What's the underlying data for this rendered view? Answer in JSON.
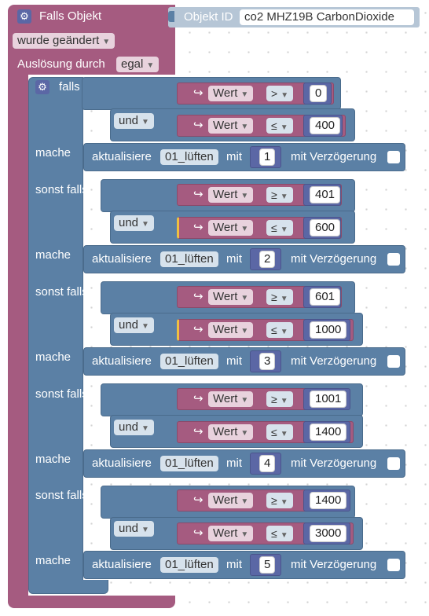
{
  "event_block": {
    "title": "Falls Objekt",
    "objekt_id_label": "Objekt ID",
    "objekt_id_value": "co2 MHZ19B  CarbonDioxide",
    "trigger": "wurde geändert",
    "ausloesung_label": "Auslösung durch",
    "ausloesung_value": "egal"
  },
  "if_block": {
    "falls": "falls",
    "mache": "mache",
    "sonst_falls": "sonst falls"
  },
  "branches": [
    {
      "c1": {
        "var": "Wert",
        "op": ">",
        "val": "0"
      },
      "joiner": "und",
      "c2": {
        "var": "Wert",
        "op": "≤",
        "val": "400"
      },
      "action": {
        "verb": "aktualisiere",
        "target": "01_lüften",
        "mit": "mit",
        "num": "1",
        "delay": "mit Verzögerung"
      }
    },
    {
      "c1": {
        "var": "Wert",
        "op": "≥",
        "val": "401"
      },
      "joiner": "und",
      "c2": {
        "var": "Wert",
        "op": "≤",
        "val": "600"
      },
      "action": {
        "verb": "aktualisiere",
        "target": "01_lüften",
        "mit": "mit",
        "num": "2",
        "delay": "mit Verzögerung"
      }
    },
    {
      "c1": {
        "var": "Wert",
        "op": "≥",
        "val": "601"
      },
      "joiner": "und",
      "c2": {
        "var": "Wert",
        "op": "≤",
        "val": "1000"
      },
      "action": {
        "verb": "aktualisiere",
        "target": "01_lüften",
        "mit": "mit",
        "num": "3",
        "delay": "mit Verzögerung"
      }
    },
    {
      "c1": {
        "var": "Wert",
        "op": "≥",
        "val": "1001"
      },
      "joiner": "und",
      "c2": {
        "var": "Wert",
        "op": "≤",
        "val": "1400"
      },
      "action": {
        "verb": "aktualisiere",
        "target": "01_lüften",
        "mit": "mit",
        "num": "4",
        "delay": "mit Verzögerung"
      }
    },
    {
      "c1": {
        "var": "Wert",
        "op": "≥",
        "val": "1400"
      },
      "joiner": "und",
      "c2": {
        "var": "Wert",
        "op": "≤",
        "val": "3000"
      },
      "action": {
        "verb": "aktualisiere",
        "target": "01_lüften",
        "mit": "mit",
        "num": "5",
        "delay": "mit Verzögerung"
      }
    }
  ],
  "icons": {
    "gear": "gear-icon",
    "arrow": "variable-arrow-icon",
    "dropdown": "dropdown-arrow-icon"
  },
  "colors": {
    "event": "#a55b80",
    "control": "#5b80a5",
    "number": "#5b67a5",
    "value": "#a55b80"
  }
}
